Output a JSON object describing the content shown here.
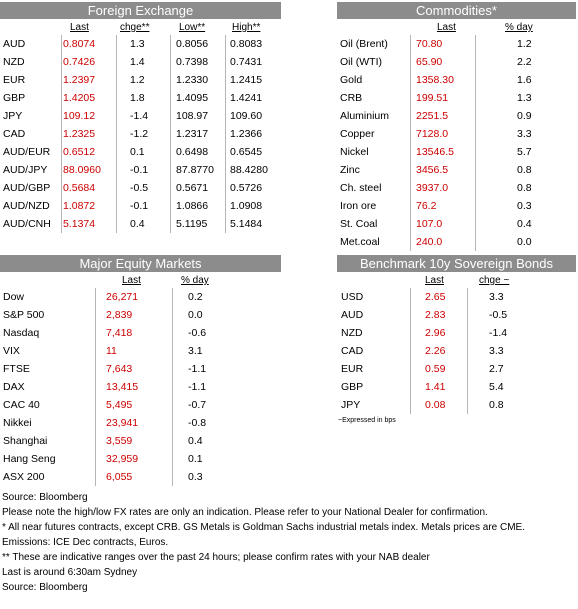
{
  "fx": {
    "title": "Foreign Exchange",
    "cols": [
      "Last",
      "chge**",
      "Low**",
      "High**"
    ],
    "rows": [
      [
        "AUD",
        "0.8074",
        "1.3",
        "0.8056",
        "0.8083"
      ],
      [
        "NZD",
        "0.7426",
        "1.4",
        "0.7398",
        "0.7431"
      ],
      [
        "EUR",
        "1.2397",
        "1.2",
        "1.2330",
        "1.2415"
      ],
      [
        "GBP",
        "1.4205",
        "1.8",
        "1.4095",
        "1.4241"
      ],
      [
        "JPY",
        "109.12",
        "-1.4",
        "108.97",
        "109.60"
      ],
      [
        "CAD",
        "1.2325",
        "-1.2",
        "1.2317",
        "1.2366"
      ],
      [
        "AUD/EUR",
        "0.6512",
        "0.1",
        "0.6498",
        "0.6545"
      ],
      [
        "AUD/JPY",
        "88.0960",
        "-0.1",
        "87.8770",
        "88.4280"
      ],
      [
        "AUD/GBP",
        "0.5684",
        "-0.5",
        "0.5671",
        "0.5726"
      ],
      [
        "AUD/NZD",
        "1.0872",
        "-0.1",
        "1.0866",
        "1.0908"
      ],
      [
        "AUD/CNH",
        "5.1374",
        "0.4",
        "5.1195",
        "5.1484"
      ]
    ]
  },
  "commodities": {
    "title": "Commodities*",
    "cols": [
      "Last",
      "% day"
    ],
    "rows": [
      [
        "Oil (Brent)",
        "70.80",
        "1.2"
      ],
      [
        "Oil (WTI)",
        "65.90",
        "2.2"
      ],
      [
        "Gold",
        "1358.30",
        "1.6"
      ],
      [
        "CRB",
        "199.51",
        "1.3"
      ],
      [
        "Aluminium",
        "2251.5",
        "0.9"
      ],
      [
        "Copper",
        "7128.0",
        "3.3"
      ],
      [
        "Nickel",
        "13546.5",
        "5.7"
      ],
      [
        "Zinc",
        "3456.5",
        "0.8"
      ],
      [
        "Ch. steel",
        "3937.0",
        "0.8"
      ],
      [
        "Iron ore",
        "76.2",
        "0.3"
      ],
      [
        "St. Coal",
        "107.0",
        "0.4"
      ],
      [
        "Met.coal",
        "240.0",
        "0.0"
      ]
    ]
  },
  "equity": {
    "title": "Major Equity Markets",
    "cols": [
      "Last",
      "% day"
    ],
    "rows": [
      [
        "Dow",
        "26,271",
        "0.2"
      ],
      [
        "S&P 500",
        "2,839",
        "0.0"
      ],
      [
        "Nasdaq",
        "7,418",
        "-0.6"
      ],
      [
        "VIX",
        "11",
        "3.1"
      ],
      [
        "FTSE",
        "7,643",
        "-1.1"
      ],
      [
        "DAX",
        "13,415",
        "-1.1"
      ],
      [
        "CAC 40",
        "5,495",
        "-0.7"
      ],
      [
        "Nikkei",
        "23,941",
        "-0.8"
      ],
      [
        "Shanghai",
        "3,559",
        "0.4"
      ],
      [
        "Hang Seng",
        "32,959",
        "0.1"
      ],
      [
        "ASX 200",
        "6,055",
        "0.3"
      ]
    ]
  },
  "bonds": {
    "title": "Benchmark 10y Sovereign Bonds",
    "cols": [
      "Last",
      "chge ~"
    ],
    "rows": [
      [
        "USD",
        "2.65",
        "3.3"
      ],
      [
        "AUD",
        "2.83",
        "-0.5"
      ],
      [
        "NZD",
        "2.96",
        "-1.4"
      ],
      [
        "CAD",
        "2.26",
        "3.3"
      ],
      [
        "EUR",
        "0.59",
        "2.7"
      ],
      [
        "GBP",
        "1.41",
        "5.4"
      ],
      [
        "JPY",
        "0.08",
        "0.8"
      ]
    ],
    "footnote": "~Expressed in bps"
  },
  "notes": [
    "Source: Bloomberg",
    "Please note the high/low FX rates are only an indication. Please refer to your National Dealer for confirmation.",
    "* All near futures contracts, except CRB.  GS Metals is Goldman Sachs industrial metals index.  Metals prices are CME.",
    "  Emissions: ICE Dec contracts, Euros.",
    "** These are indicative ranges over the past 24 hours; please confirm rates with your NAB dealer",
    "Last is around 6:30am Sydney",
    "Source: Bloomberg"
  ],
  "colors": {
    "header": "#8c8c8c",
    "value": "#cc0000"
  }
}
